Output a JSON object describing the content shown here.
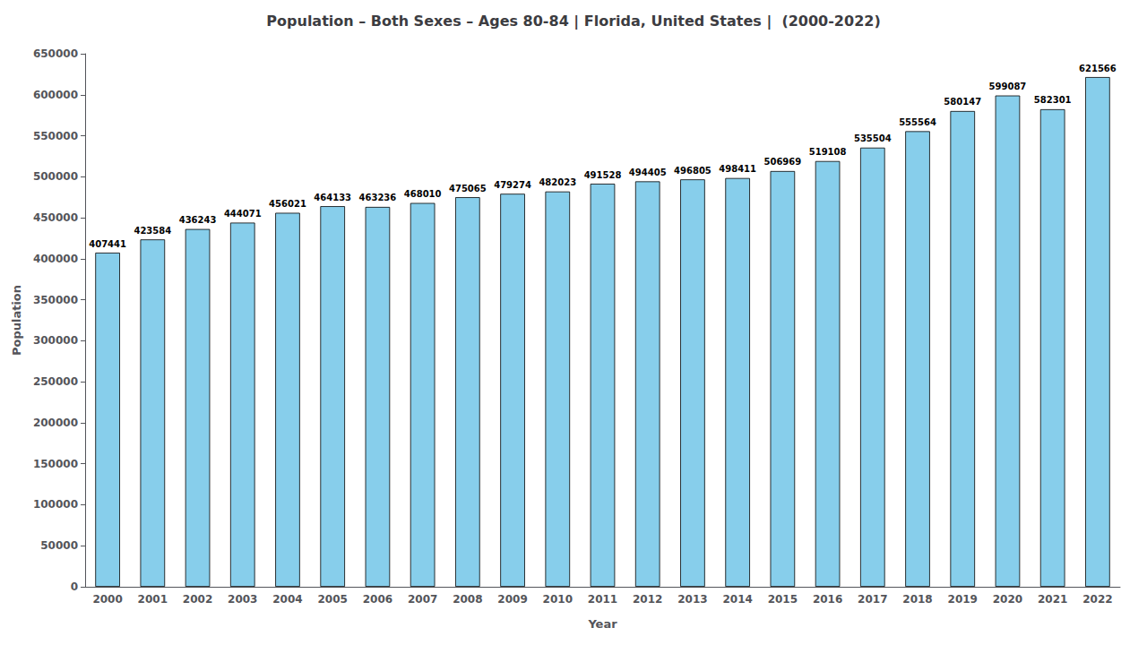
{
  "chart_data": {
    "type": "bar",
    "title": "Population – Both Sexes – Ages 80-84 | Florida, United States |  (2000-2022)",
    "xlabel": "Year",
    "ylabel": "Population",
    "categories": [
      "2000",
      "2001",
      "2002",
      "2003",
      "2004",
      "2005",
      "2006",
      "2007",
      "2008",
      "2009",
      "2010",
      "2011",
      "2012",
      "2013",
      "2014",
      "2015",
      "2016",
      "2017",
      "2018",
      "2019",
      "2020",
      "2021",
      "2022"
    ],
    "values": [
      407441,
      423584,
      436243,
      444071,
      456021,
      464133,
      463236,
      468010,
      475065,
      479274,
      482023,
      491528,
      494405,
      496805,
      498411,
      506969,
      519108,
      535504,
      555564,
      580147,
      599087,
      582301,
      621566
    ],
    "color": "#87CEEB",
    "ylim": [
      0,
      650000
    ],
    "yticks": [
      0,
      50000,
      100000,
      150000,
      200000,
      250000,
      300000,
      350000,
      400000,
      450000,
      500000,
      550000,
      600000,
      650000
    ],
    "data_labels": true,
    "grid": false
  }
}
